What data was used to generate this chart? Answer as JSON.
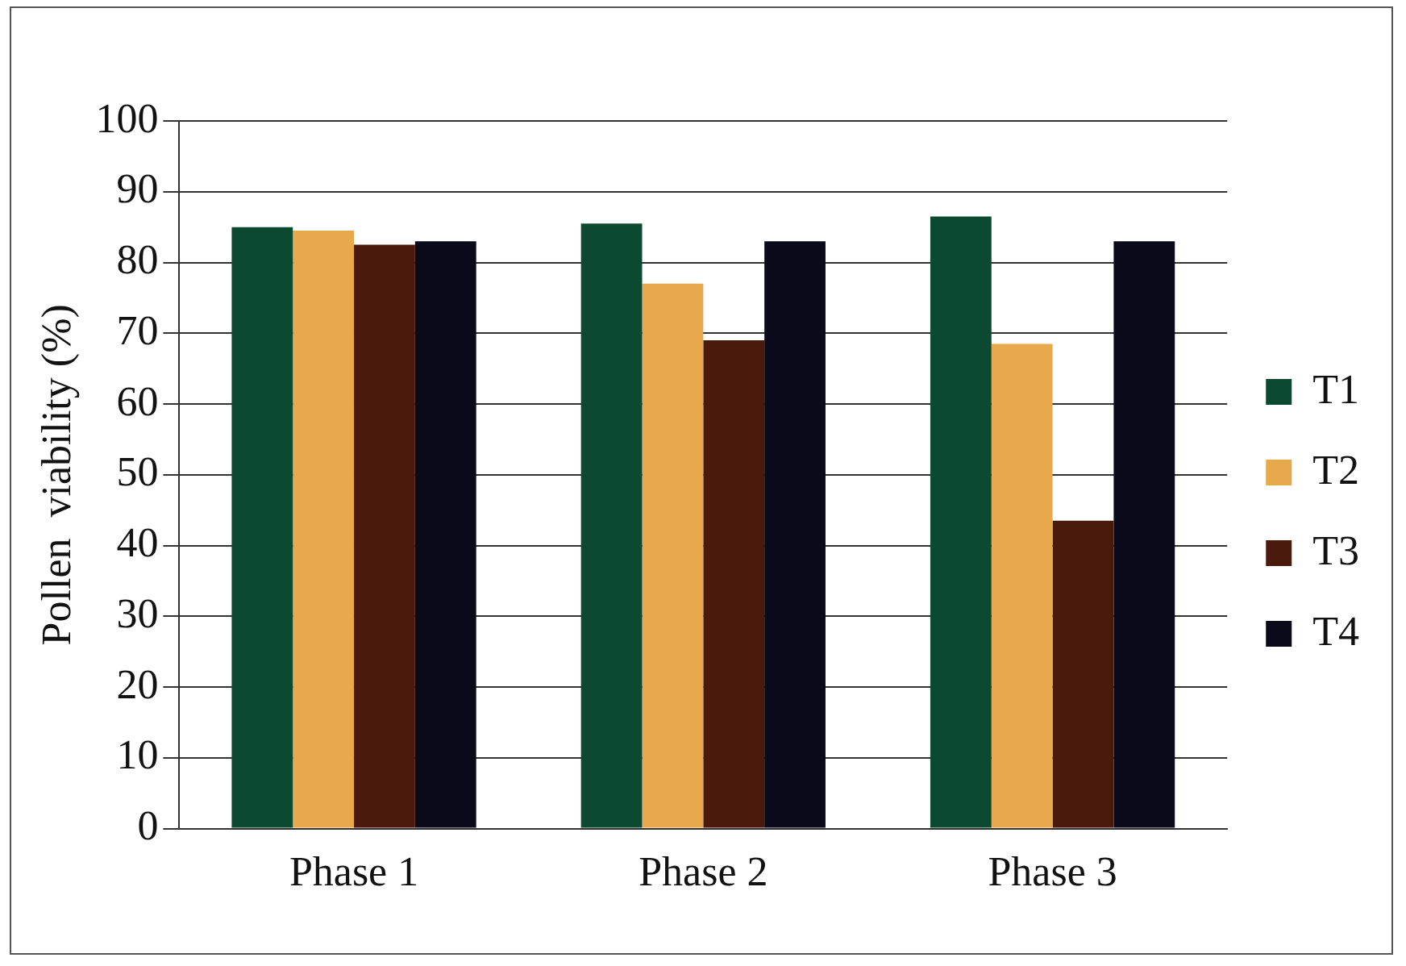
{
  "chart_data": {
    "type": "bar",
    "ylabel": "Pollen  viability (%)",
    "categories": [
      "Phase 1",
      "Phase 2",
      "Phase 3"
    ],
    "series": [
      {
        "name": "T1",
        "color": "#0b4a30",
        "values": [
          85,
          85.5,
          86.5
        ]
      },
      {
        "name": "T2",
        "color": "#e8a84c",
        "values": [
          84.5,
          77,
          68.5
        ]
      },
      {
        "name": "T3",
        "color": "#4a1a0c",
        "values": [
          82.5,
          69,
          43.5
        ]
      },
      {
        "name": "T4",
        "color": "#0a0a1a",
        "values": [
          83,
          83,
          83
        ]
      }
    ],
    "ylim": [
      0,
      100
    ],
    "yticks": [
      0,
      10,
      20,
      30,
      40,
      50,
      60,
      70,
      80,
      90,
      100
    ],
    "grid": "y",
    "legend": "right"
  }
}
